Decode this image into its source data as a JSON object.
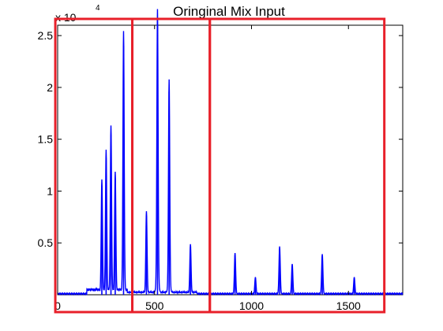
{
  "chart_data": {
    "type": "line",
    "title": "Oringinal Mix Input",
    "xlabel": "",
    "ylabel": "",
    "exponent_base": "x 10",
    "exponent_power": "4",
    "xlim": [
      0,
      1780
    ],
    "ylim": [
      0,
      26000
    ],
    "x_ticks": [
      0,
      500,
      1000,
      1500
    ],
    "x_tick_labels": [
      "0",
      "500",
      "1000",
      "1500"
    ],
    "y_ticks": [
      5000,
      10000,
      15000,
      20000,
      25000
    ],
    "y_tick_labels": [
      "0.5",
      "1",
      "1.5",
      "2",
      "2.5"
    ],
    "grid": false,
    "legend": "none",
    "series": [
      {
        "color": "#0000ff",
        "peaks": [
          {
            "x": 228,
            "y": 10500
          },
          {
            "x": 250,
            "y": 13200
          },
          {
            "x": 275,
            "y": 15400
          },
          {
            "x": 297,
            "y": 11200
          },
          {
            "x": 340,
            "y": 24000
          },
          {
            "x": 458,
            "y": 7600
          },
          {
            "x": 515,
            "y": 26000
          },
          {
            "x": 575,
            "y": 19600
          },
          {
            "x": 685,
            "y": 4600
          },
          {
            "x": 915,
            "y": 3800
          },
          {
            "x": 1020,
            "y": 1600
          },
          {
            "x": 1145,
            "y": 4400
          },
          {
            "x": 1210,
            "y": 2800
          },
          {
            "x": 1365,
            "y": 3700
          },
          {
            "x": 1530,
            "y": 1600
          }
        ]
      }
    ],
    "highlight_boxes": [
      {
        "x_from": -12,
        "x_to": 385,
        "color": "#e8202a"
      },
      {
        "x_from": 385,
        "x_to": 785,
        "color": "#e8202a"
      },
      {
        "x_from": 785,
        "x_to": 1685,
        "color": "#e8202a"
      }
    ]
  }
}
